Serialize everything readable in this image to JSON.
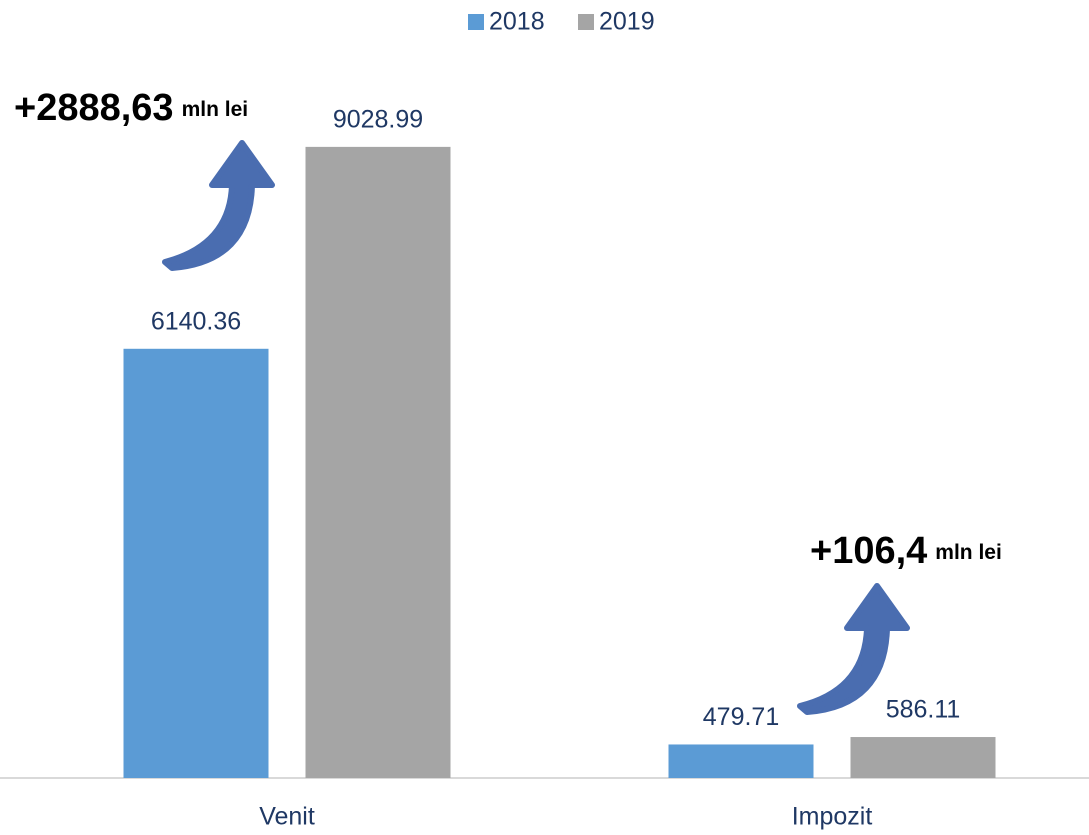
{
  "chart_data": {
    "type": "bar",
    "categories": [
      "Venit",
      "Impozit"
    ],
    "series": [
      {
        "name": "2018",
        "color": "#5b9bd5",
        "values": [
          6140.36,
          479.71
        ]
      },
      {
        "name": "2019",
        "color": "#a5a5a5",
        "values": [
          9028.99,
          586.11
        ]
      }
    ],
    "ylim": [
      0,
      10000
    ],
    "legend": "top",
    "annotations": [
      {
        "text": "+2888,63",
        "unit": "mln lei"
      },
      {
        "text": "+106,4",
        "unit": "mln lei"
      }
    ]
  }
}
